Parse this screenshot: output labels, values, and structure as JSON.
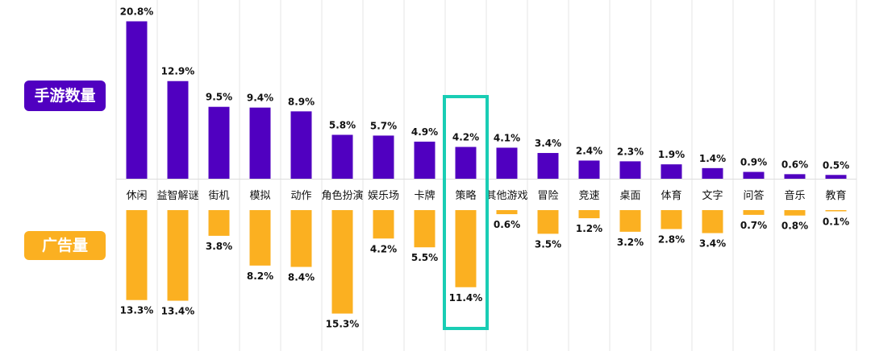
{
  "legend": {
    "top_label": "手游数量",
    "bottom_label": "广告量"
  },
  "colors": {
    "top": "#5000c0",
    "bottom": "#fbb021",
    "highlight": "#19cdb4",
    "grid": "#e6e6e6"
  },
  "chart_data": {
    "type": "bar",
    "title": "",
    "xlabel": "",
    "ylabel": "",
    "categories": [
      "休闲",
      "益智解谜",
      "街机",
      "模拟",
      "动作",
      "角色扮演",
      "娱乐场",
      "卡牌",
      "策略",
      "其他游戏",
      "冒险",
      "竞速",
      "桌面",
      "体育",
      "文字",
      "问答",
      "音乐",
      "教育"
    ],
    "series": [
      {
        "name": "手游数量",
        "values": [
          20.8,
          12.9,
          9.5,
          9.4,
          8.9,
          5.8,
          5.7,
          4.9,
          4.2,
          4.1,
          3.4,
          2.4,
          2.3,
          1.9,
          1.4,
          0.9,
          0.6,
          0.5
        ],
        "labels": [
          "20.8%",
          "12.9%",
          "9.5%",
          "9.4%",
          "8.9%",
          "5.8%",
          "5.7%",
          "4.9%",
          "4.2%",
          "4.1%",
          "3.4%",
          "2.4%",
          "2.3%",
          "1.9%",
          "1.4%",
          "0.9%",
          "0.6%",
          "0.5%"
        ]
      },
      {
        "name": "广告量",
        "values": [
          13.3,
          13.4,
          3.8,
          8.2,
          8.4,
          15.3,
          4.2,
          5.5,
          11.4,
          0.6,
          3.5,
          1.2,
          3.2,
          2.8,
          3.4,
          0.7,
          0.8,
          0.1
        ],
        "labels": [
          "13.3%",
          "13.4%",
          "3.8%",
          "8.2%",
          "8.4%",
          "15.3%",
          "4.2%",
          "5.5%",
          "11.4%",
          "0.6%",
          "3.5%",
          "1.2%",
          "3.2%",
          "2.8%",
          "3.4%",
          "0.7%",
          "0.8%",
          "0.1%"
        ]
      }
    ],
    "highlight_category": "策略",
    "grid": true,
    "legend_position": "left"
  }
}
